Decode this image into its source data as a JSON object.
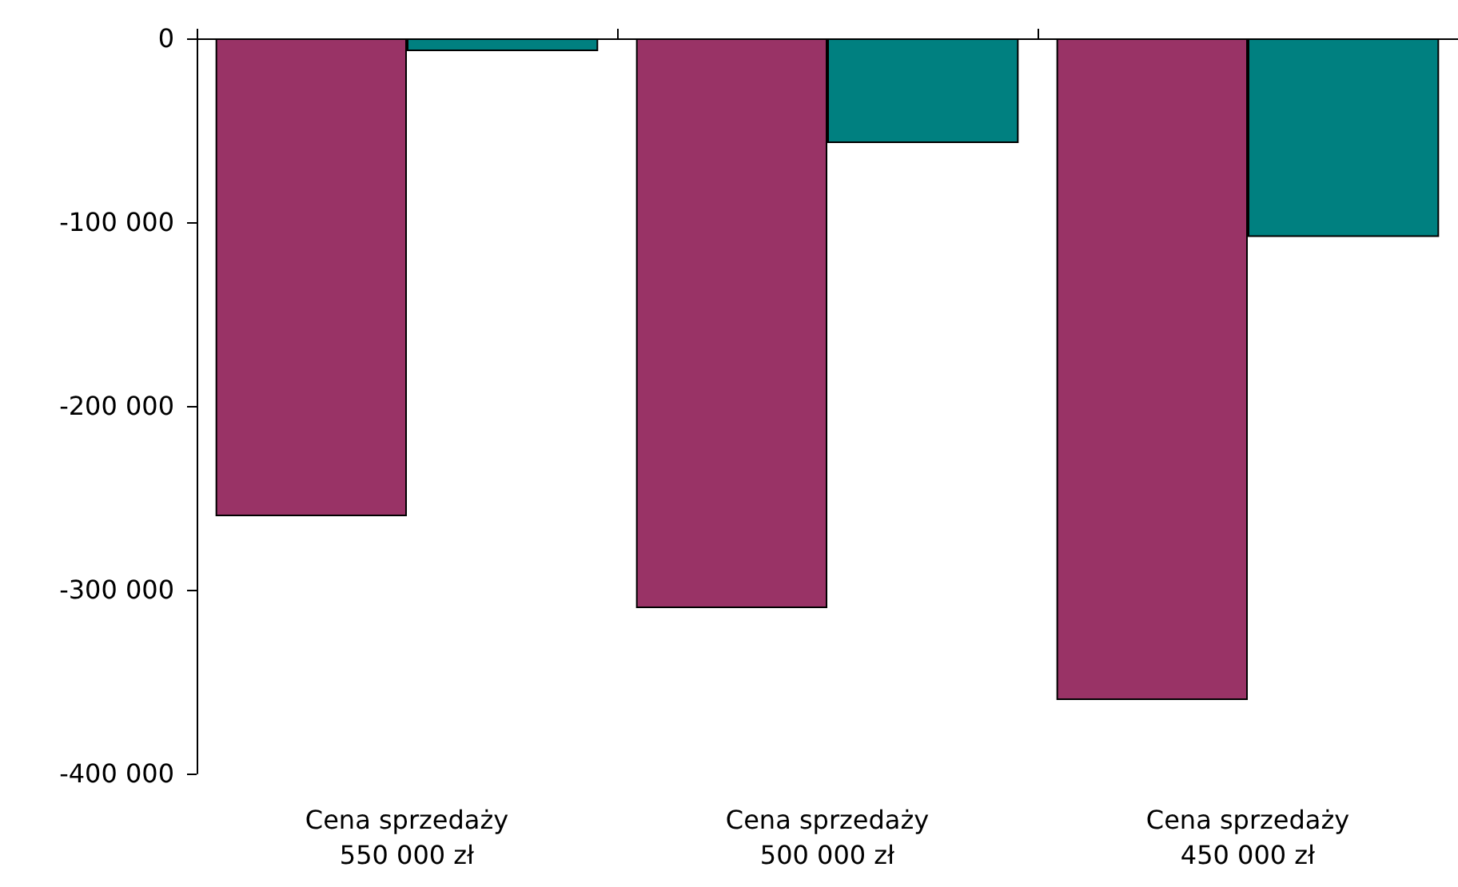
{
  "chart_data": {
    "type": "bar",
    "categories": [
      "Cena sprzedaży\n550 000 zł",
      "Cena sprzedaży\n500 000 zł",
      "Cena sprzedaży\n450 000 zł"
    ],
    "series": [
      {
        "color": "#993366",
        "values": [
          -260000,
          -310000,
          -360000
        ]
      },
      {
        "color": "#008080",
        "values": [
          -7000,
          -57000,
          -108000
        ]
      }
    ],
    "ylim": [
      -400000,
      0
    ],
    "yticks": [
      {
        "value": -400000,
        "label": "-400 000"
      },
      {
        "value": -300000,
        "label": "-300 000"
      },
      {
        "value": -200000,
        "label": "-200 000"
      },
      {
        "value": -100000,
        "label": "-100 000"
      },
      {
        "value": 0,
        "label": "0"
      }
    ],
    "grid": false
  }
}
